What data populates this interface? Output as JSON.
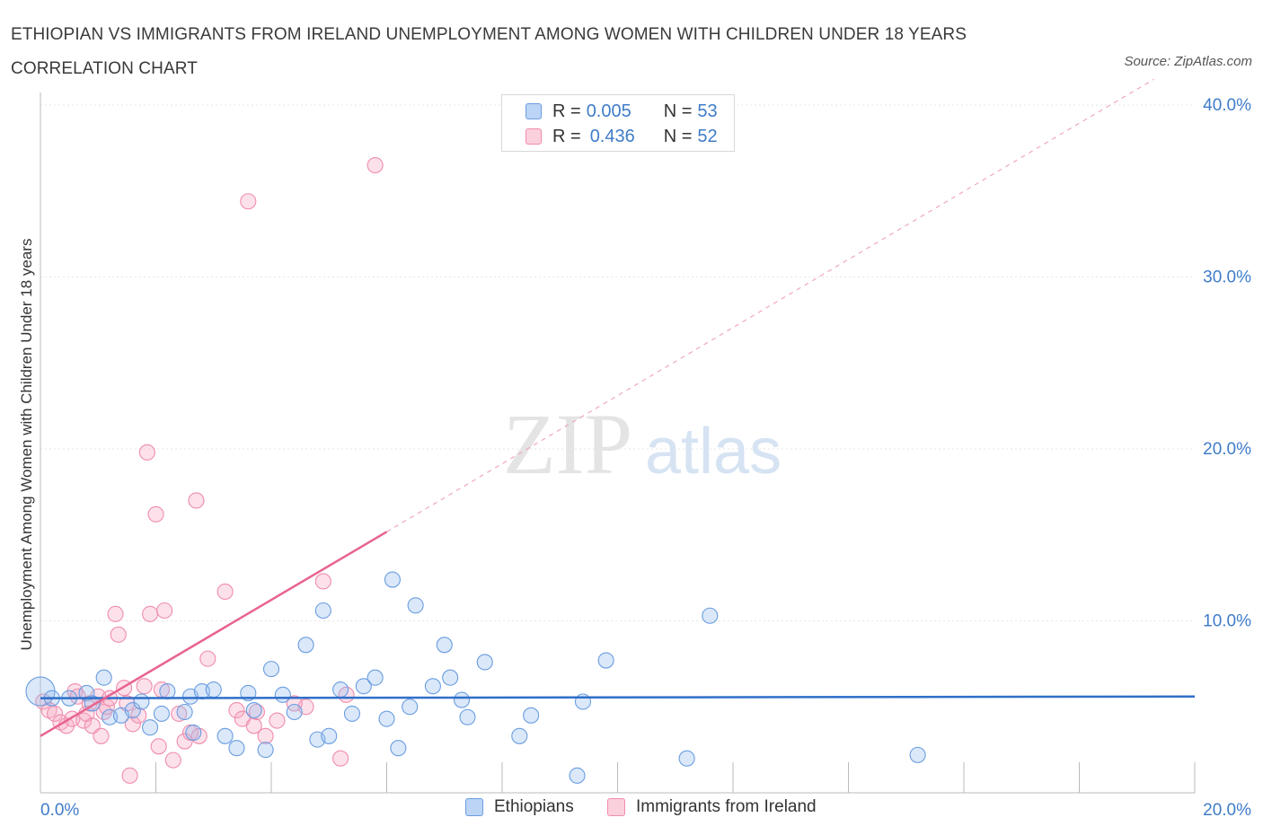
{
  "title": "ETHIOPIAN VS IMMIGRANTS FROM IRELAND UNEMPLOYMENT AMONG WOMEN WITH CHILDREN UNDER 18 YEARS CORRELATION CHART",
  "source": "Source: ZipAtlas.com",
  "watermark": {
    "zip": "ZIP",
    "atlas": "atlas"
  },
  "legend": {
    "rows": [
      {
        "r_label": "R = ",
        "r_value": "0.005",
        "n_label": "N = ",
        "n_value": "53"
      },
      {
        "r_label": "R = ",
        "r_value": "0.436",
        "n_label": "N = ",
        "n_value": "52"
      }
    ]
  },
  "chart_data": {
    "type": "scatter",
    "xlabel": "",
    "ylabel": "Unemployment Among Women with Children Under 18 years",
    "xlim": [
      0,
      20
    ],
    "ylim": [
      0,
      40
    ],
    "x_tick_labels": [
      "0.0%",
      "20.0%"
    ],
    "y_ticks": [
      10,
      20,
      30,
      40
    ],
    "y_tick_labels": [
      "10.0%",
      "20.0%",
      "30.0%",
      "40.0%"
    ],
    "grid": true,
    "legend_position": "top-center",
    "colors": {
      "ethiopians": "#6a9de0",
      "ireland": "#f08cac",
      "eth_line": "#2f6fc9",
      "ire_line": "#e8638e",
      "tick_label": "#3f7cc9"
    },
    "series": [
      {
        "name": "Ethiopians",
        "trend": {
          "x0": 0,
          "y0": 5.5,
          "x1": 20,
          "y1": 5.6
        },
        "points": [
          [
            0.0,
            5.9
          ],
          [
            0.2,
            5.5
          ],
          [
            0.5,
            5.5
          ],
          [
            0.8,
            5.8
          ],
          [
            0.9,
            5.2
          ],
          [
            1.1,
            6.7
          ],
          [
            1.2,
            4.4
          ],
          [
            1.4,
            4.5
          ],
          [
            1.6,
            4.8
          ],
          [
            1.75,
            5.3
          ],
          [
            1.9,
            3.8
          ],
          [
            2.1,
            4.6
          ],
          [
            2.2,
            5.9
          ],
          [
            2.5,
            4.7
          ],
          [
            2.6,
            5.6
          ],
          [
            2.65,
            3.5
          ],
          [
            2.8,
            5.9
          ],
          [
            3.0,
            6.0
          ],
          [
            3.2,
            3.3
          ],
          [
            3.4,
            2.6
          ],
          [
            3.6,
            5.8
          ],
          [
            3.7,
            4.8
          ],
          [
            3.9,
            2.5
          ],
          [
            4.0,
            7.2
          ],
          [
            4.2,
            5.7
          ],
          [
            4.4,
            4.7
          ],
          [
            4.6,
            8.6
          ],
          [
            4.8,
            3.1
          ],
          [
            4.9,
            10.6
          ],
          [
            5.0,
            3.3
          ],
          [
            5.2,
            6.0
          ],
          [
            5.4,
            4.6
          ],
          [
            5.6,
            6.2
          ],
          [
            5.8,
            6.7
          ],
          [
            6.0,
            4.3
          ],
          [
            6.1,
            12.4
          ],
          [
            6.2,
            2.6
          ],
          [
            6.4,
            5.0
          ],
          [
            6.5,
            10.9
          ],
          [
            6.8,
            6.2
          ],
          [
            7.0,
            8.6
          ],
          [
            7.1,
            6.7
          ],
          [
            7.3,
            5.4
          ],
          [
            7.4,
            4.4
          ],
          [
            7.7,
            7.6
          ],
          [
            8.3,
            3.3
          ],
          [
            8.5,
            4.5
          ],
          [
            9.3,
            1.0
          ],
          [
            9.4,
            5.3
          ],
          [
            9.8,
            7.7
          ],
          [
            11.2,
            2.0
          ],
          [
            11.6,
            10.3
          ],
          [
            15.2,
            2.2
          ]
        ]
      },
      {
        "name": "Immigrants from Ireland",
        "trend": {
          "x0": 0,
          "y0": 3.3,
          "x1": 20,
          "y1": 42.9,
          "solid_until_x": 6.0
        },
        "points": [
          [
            0.05,
            5.3
          ],
          [
            0.15,
            4.8
          ],
          [
            0.25,
            4.6
          ],
          [
            0.35,
            4.1
          ],
          [
            0.45,
            3.9
          ],
          [
            0.55,
            4.3
          ],
          [
            0.6,
            5.9
          ],
          [
            0.65,
            5.6
          ],
          [
            0.75,
            4.2
          ],
          [
            0.8,
            4.6
          ],
          [
            0.85,
            5.2
          ],
          [
            0.9,
            3.9
          ],
          [
            1.0,
            5.6
          ],
          [
            1.05,
            3.3
          ],
          [
            1.1,
            4.7
          ],
          [
            1.15,
            5.0
          ],
          [
            1.2,
            5.5
          ],
          [
            1.3,
            10.4
          ],
          [
            1.35,
            9.2
          ],
          [
            1.45,
            6.1
          ],
          [
            1.5,
            5.2
          ],
          [
            1.55,
            1.0
          ],
          [
            1.6,
            4.0
          ],
          [
            1.7,
            4.5
          ],
          [
            1.8,
            6.2
          ],
          [
            1.85,
            19.8
          ],
          [
            1.9,
            10.4
          ],
          [
            2.0,
            16.2
          ],
          [
            2.05,
            2.7
          ],
          [
            2.1,
            6.0
          ],
          [
            2.15,
            10.6
          ],
          [
            2.3,
            1.9
          ],
          [
            2.4,
            4.6
          ],
          [
            2.5,
            3.0
          ],
          [
            2.6,
            3.5
          ],
          [
            2.7,
            17.0
          ],
          [
            2.75,
            3.3
          ],
          [
            2.9,
            7.8
          ],
          [
            3.2,
            11.7
          ],
          [
            3.4,
            4.8
          ],
          [
            3.5,
            4.3
          ],
          [
            3.6,
            34.4
          ],
          [
            3.7,
            3.9
          ],
          [
            3.75,
            4.7
          ],
          [
            3.9,
            3.3
          ],
          [
            4.1,
            4.2
          ],
          [
            4.6,
            5.0
          ],
          [
            4.9,
            12.3
          ],
          [
            5.2,
            2.0
          ],
          [
            5.8,
            36.5
          ],
          [
            5.3,
            5.7
          ],
          [
            4.4,
            5.2
          ]
        ]
      }
    ]
  },
  "bottom_legend": [
    "Ethiopians",
    "Immigrants from Ireland"
  ]
}
